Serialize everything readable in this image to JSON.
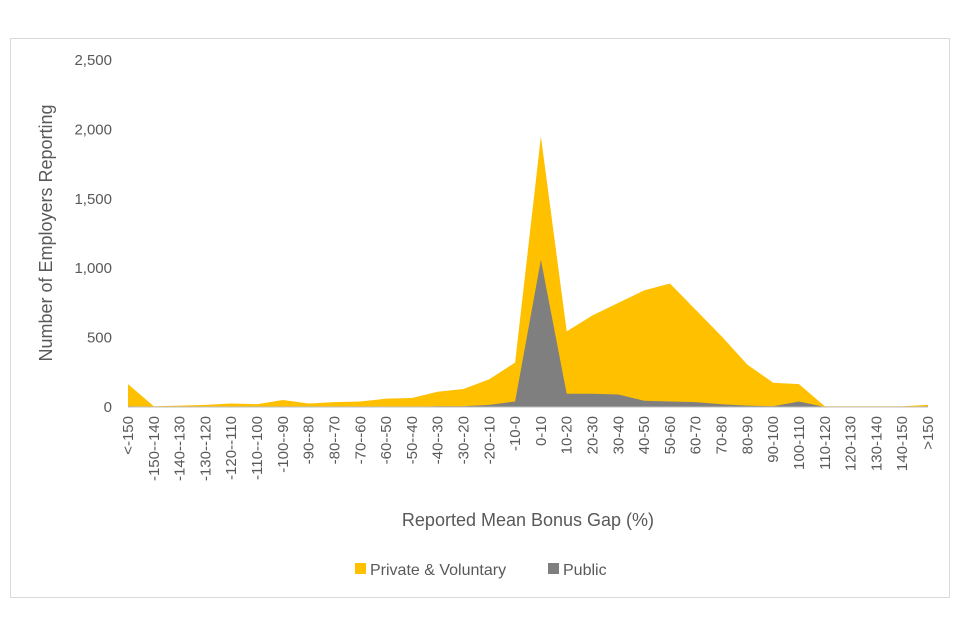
{
  "chart_data": {
    "type": "area",
    "title": "",
    "xlabel": "Reported Mean Bonus Gap (%)",
    "ylabel": "Number of Employers Reporting",
    "ylim": [
      0,
      2500
    ],
    "yticks": [
      0,
      500,
      1000,
      1500,
      2000,
      2500
    ],
    "ytick_labels": [
      "0",
      "500",
      "1,000",
      "1,500",
      "2,000",
      "2,500"
    ],
    "categories": [
      "<-150",
      "-150--140",
      "-140--130",
      "-130--120",
      "-120--110",
      "-110--100",
      "-100--90",
      "-90--80",
      "-80--70",
      "-70--60",
      "-60--50",
      "-50--40",
      "-40--30",
      "-30--20",
      "-20--10",
      "-10-0",
      "0-10",
      "10-20",
      "20-30",
      "30-40",
      "40-50",
      "50-60",
      "60-70",
      "70-80",
      "80-90",
      "90-100",
      "100-110",
      "110-120",
      "120-130",
      "130-140",
      "140-150",
      ">150"
    ],
    "series": [
      {
        "name": "Private & Voluntary",
        "color": "#FFC000",
        "values": [
          165,
          5,
          10,
          15,
          25,
          20,
          50,
          25,
          35,
          40,
          60,
          65,
          110,
          130,
          200,
          320,
          1950,
          545,
          660,
          750,
          840,
          890,
          700,
          510,
          305,
          175,
          165,
          5,
          5,
          5,
          5,
          15
        ]
      },
      {
        "name": "Public",
        "color": "#7F7F7F",
        "values": [
          5,
          0,
          0,
          0,
          0,
          0,
          0,
          0,
          0,
          0,
          0,
          0,
          5,
          5,
          15,
          40,
          1060,
          95,
          95,
          90,
          45,
          40,
          35,
          20,
          10,
          5,
          40,
          0,
          0,
          0,
          0,
          5
        ]
      }
    ],
    "grid": false,
    "legend": "bottom"
  }
}
